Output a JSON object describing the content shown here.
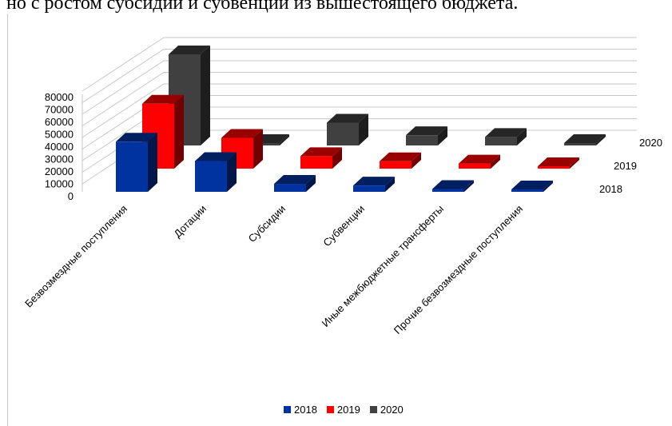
{
  "header": {
    "text": "но с ростом субсидий и субвенций из вышестоящего бюджета."
  },
  "chart_data": {
    "type": "bar",
    "y_ticks": [
      "0",
      "10000",
      "20000",
      "30000",
      "40000",
      "50000",
      "60000",
      "70000",
      "80000"
    ],
    "ylim": [
      0,
      80000
    ],
    "categories": [
      "Безвозмездные поступления",
      "Дотации",
      "Субсидии",
      "Субвенции",
      "Иные межбюджетные трансферты",
      "Прочие безвозмездные поступления"
    ],
    "series": [
      {
        "name": "2018",
        "color": "#0033a0",
        "values": [
          44000,
          27000,
          7000,
          5500,
          2500,
          300
        ]
      },
      {
        "name": "2019",
        "color": "#ff0000",
        "values": [
          57000,
          27000,
          11000,
          6500,
          4500,
          300
        ]
      },
      {
        "name": "2020",
        "color": "#404040",
        "values": [
          80000,
          1500,
          20000,
          9000,
          7500,
          400
        ]
      }
    ],
    "grid": true,
    "legend_position": "bottom"
  }
}
